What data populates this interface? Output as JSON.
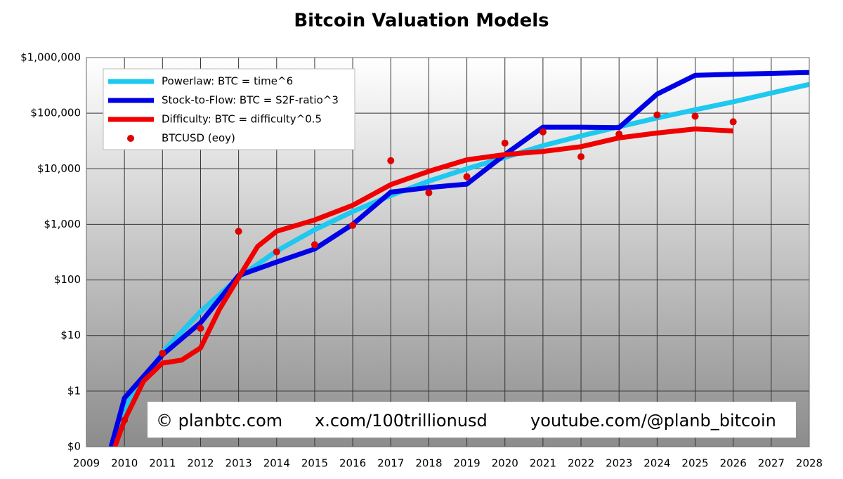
{
  "chart_data": {
    "type": "line",
    "title": "Bitcoin Valuation Models",
    "log_scale_y": true,
    "grid": true,
    "legend": "upper left",
    "xlim": [
      2009,
      2028
    ],
    "xticks": [
      2009,
      2010,
      2011,
      2012,
      2013,
      2014,
      2015,
      2016,
      2017,
      2018,
      2019,
      2020,
      2021,
      2022,
      2023,
      2024,
      2025,
      2026,
      2027,
      2028
    ],
    "ylim": [
      0.1,
      1000000
    ],
    "yticks": [
      {
        "value": 0.1,
        "label": "$0"
      },
      {
        "value": 1,
        "label": "$1"
      },
      {
        "value": 10,
        "label": "$10"
      },
      {
        "value": 100,
        "label": "$100"
      },
      {
        "value": 1000,
        "label": "$1,000"
      },
      {
        "value": 10000,
        "label": "$10,000"
      },
      {
        "value": 100000,
        "label": "$100,000"
      },
      {
        "value": 1000000,
        "label": "$1,000,000"
      }
    ],
    "series": [
      {
        "name": "Powerlaw: BTC = time^6",
        "color": "#1ec8f0",
        "style": "line",
        "x": [
          2009.75,
          2010,
          2011,
          2012,
          2013,
          2014,
          2015,
          2016,
          2017,
          2018,
          2019,
          2020,
          2021,
          2022,
          2023,
          2024,
          2025,
          2026,
          2027,
          2028
        ],
        "values": [
          0.1,
          0.5,
          5,
          27,
          110,
          330,
          800,
          1700,
          3300,
          6000,
          10000,
          16000,
          26000,
          39000,
          57000,
          82000,
          115000,
          160000,
          230000,
          330000
        ]
      },
      {
        "name": "Stock-to-Flow: BTC = S2F-ratio^3",
        "color": "#0000e6",
        "style": "line",
        "x": [
          2009.65,
          2010,
          2011,
          2012,
          2013,
          2014,
          2015,
          2016,
          2017,
          2018,
          2019,
          2020,
          2021,
          2022,
          2023,
          2024,
          2025,
          2026,
          2027,
          2028
        ],
        "values": [
          0.1,
          0.75,
          4.5,
          17,
          120,
          210,
          360,
          1000,
          3800,
          4600,
          5300,
          18000,
          56000,
          56000,
          55000,
          220000,
          480000,
          500000,
          520000,
          540000
        ]
      },
      {
        "name": "Difficulty: BTC = difficulty^0.5",
        "color": "#f00000",
        "style": "line",
        "x": [
          2009.75,
          2010,
          2010.5,
          2011,
          2011.5,
          2012,
          2012.5,
          2013,
          2013.5,
          2014,
          2015,
          2016,
          2017,
          2018,
          2019,
          2020,
          2021,
          2022,
          2023,
          2024,
          2025,
          2026
        ],
        "values": [
          0.1,
          0.3,
          1.5,
          3.2,
          3.6,
          6,
          30,
          110,
          400,
          750,
          1200,
          2200,
          5200,
          9000,
          14500,
          18000,
          20500,
          25000,
          36000,
          44000,
          52000,
          48000
        ]
      },
      {
        "name": "BTCUSD (eoy)",
        "color": "#e00000",
        "style": "markers",
        "x": [
          2010,
          2011,
          2012,
          2013,
          2014,
          2015,
          2016,
          2017,
          2018,
          2019,
          2020,
          2021,
          2022,
          2023,
          2024,
          2025,
          2026
        ],
        "values": [
          0.3,
          4.8,
          13.5,
          750,
          320,
          430,
          960,
          14000,
          3700,
          7200,
          29000,
          46000,
          16500,
          42000,
          93000,
          88000,
          70000
        ]
      }
    ],
    "annotations": [
      "© planbtc.com",
      "x.com/100trillionusd",
      "youtube.com/@planb_bitcoin"
    ]
  }
}
